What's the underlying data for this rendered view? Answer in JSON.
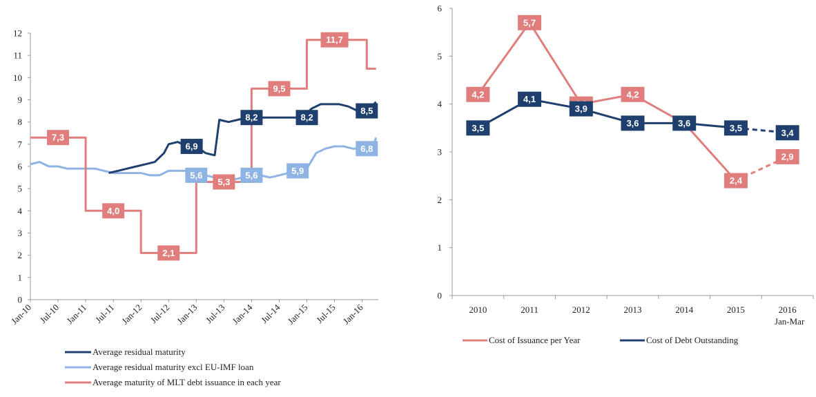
{
  "chart_data": [
    {
      "type": "line",
      "title": "",
      "ylim": [
        0,
        12
      ],
      "y_ticks": [
        "0",
        "1",
        "2",
        "3",
        "4",
        "5",
        "6",
        "7",
        "8",
        "9",
        "10",
        "11",
        "12"
      ],
      "x_ticks": [
        "Jan-10",
        "Jul-10",
        "Jan-11",
        "Jul-11",
        "Jan-12",
        "Jul-12",
        "Jan-13",
        "Jul-13",
        "Jan-14",
        "Jul-14",
        "Jan-15",
        "Jul-15",
        "Jan-16"
      ],
      "grid": false,
      "legend_position": "bottom",
      "series": [
        {
          "name": "Average residual maturity",
          "color": "#1f3f6e",
          "x": [
            "Jun-11",
            "Aug-11",
            "Oct-11",
            "Dec-11",
            "Feb-12",
            "Apr-12",
            "Jun-12",
            "Jul-12",
            "Sep-12",
            "Nov-12",
            "Jan-13",
            "Mar-13",
            "May-13",
            "Jun-13",
            "Aug-13",
            "Oct-13",
            "Dec-13",
            "Feb-14",
            "Apr-14",
            "Jun-14",
            "Aug-14",
            "Oct-14",
            "Dec-14",
            "Feb-15",
            "Apr-15",
            "Jun-15",
            "Aug-15",
            "Oct-15",
            "Dec-15",
            "Feb-16",
            "Apr-16"
          ],
          "values": [
            5.7,
            5.8,
            5.9,
            6.0,
            6.1,
            6.2,
            6.6,
            7.0,
            7.1,
            6.9,
            6.9,
            6.6,
            6.5,
            8.1,
            8.0,
            8.1,
            8.2,
            8.2,
            8.2,
            8.2,
            8.2,
            8.2,
            8.2,
            8.6,
            8.8,
            8.8,
            8.8,
            8.7,
            8.5,
            8.5,
            8.9
          ],
          "labels": [
            {
              "x": "Dec-12",
              "text": "6,9"
            },
            {
              "x": "Jan-14",
              "text": "8,2"
            },
            {
              "x": "Jan-15",
              "text": "8,2"
            },
            {
              "x": "Feb-16",
              "text": "8,5"
            }
          ]
        },
        {
          "name": "Average residual maturity excl EU-IMF loan",
          "color": "#8fb4e3",
          "x": [
            "Jan-10",
            "Mar-10",
            "May-10",
            "Jul-10",
            "Sep-10",
            "Nov-10",
            "Jan-11",
            "Mar-11",
            "May-11",
            "Jul-11",
            "Sep-11",
            "Nov-11",
            "Jan-12",
            "Mar-12",
            "May-12",
            "Jul-12",
            "Sep-12",
            "Nov-12",
            "Jan-13",
            "Mar-13",
            "May-13",
            "Jul-13",
            "Sep-13",
            "Nov-13",
            "Jan-14",
            "Mar-14",
            "May-14",
            "Jul-14",
            "Sep-14",
            "Nov-14",
            "Jan-15",
            "Mar-15",
            "May-15",
            "Jul-15",
            "Sep-15",
            "Nov-15",
            "Jan-16",
            "Mar-16",
            "Apr-16"
          ],
          "values": [
            6.1,
            6.2,
            6.0,
            6.0,
            5.9,
            5.9,
            5.9,
            5.9,
            5.8,
            5.7,
            5.7,
            5.7,
            5.7,
            5.6,
            5.6,
            5.8,
            5.8,
            5.8,
            5.6,
            5.6,
            5.5,
            5.4,
            5.4,
            5.5,
            5.6,
            5.6,
            5.5,
            5.6,
            5.7,
            5.8,
            5.9,
            6.6,
            6.8,
            6.9,
            6.9,
            6.8,
            6.8,
            6.6,
            7.3
          ],
          "labels": [
            {
              "x": "Jan-13",
              "text": "5,6"
            },
            {
              "x": "Jan-14",
              "text": "5,6"
            },
            {
              "x": "Nov-14",
              "text": "5,9"
            },
            {
              "x": "Feb-16",
              "text": "6,8"
            }
          ]
        },
        {
          "name": "Average maturity of MLT debt issuance in each year",
          "color": "#e07d7d",
          "step": true,
          "x": [
            "Jan-10",
            "Jan-11",
            "Jan-12",
            "Jan-13",
            "Jan-14",
            "Jan-15",
            "Feb-16",
            "Apr-16"
          ],
          "values": [
            7.3,
            4.0,
            2.1,
            5.3,
            9.5,
            11.7,
            10.4,
            10.4
          ],
          "labels": [
            {
              "x": "Jul-10",
              "text": "7,3"
            },
            {
              "x": "Jul-11",
              "text": "4,0"
            },
            {
              "x": "Jul-12",
              "text": "2,1"
            },
            {
              "x": "Jul-13",
              "text": "5,3"
            },
            {
              "x": "Jul-14",
              "text": "9,5"
            },
            {
              "x": "Jul-15",
              "text": "11,7"
            }
          ]
        }
      ]
    },
    {
      "type": "line",
      "title": "",
      "ylim": [
        0,
        6
      ],
      "y_ticks": [
        "0",
        "1",
        "2",
        "3",
        "4",
        "5",
        "6"
      ],
      "categories": [
        "2010",
        "2011",
        "2012",
        "2013",
        "2014",
        "2015",
        "2016"
      ],
      "category_sublabels": [
        "",
        "",
        "",
        "",
        "",
        "",
        "Jan-Mar"
      ],
      "grid": false,
      "legend_position": "bottom",
      "series": [
        {
          "name": "Cost of Issuance per Year",
          "color": "#e07d7d",
          "values": [
            4.2,
            5.7,
            4.0,
            4.2,
            3.6,
            2.4,
            2.9
          ],
          "labels": [
            "4,2",
            "5,7",
            "4,0",
            "4,2",
            "",
            "2,4",
            "2,9"
          ],
          "dashed_last_segment": true
        },
        {
          "name": "Cost of Debt Outstanding",
          "color": "#1f3f6e",
          "values": [
            3.5,
            4.1,
            3.9,
            3.6,
            3.6,
            3.5,
            3.4
          ],
          "labels": [
            "3,5",
            "4,1",
            "3,9",
            "3,6",
            "3,6",
            "3,5",
            "3,4"
          ],
          "dashed_last_segment": true
        }
      ]
    }
  ]
}
